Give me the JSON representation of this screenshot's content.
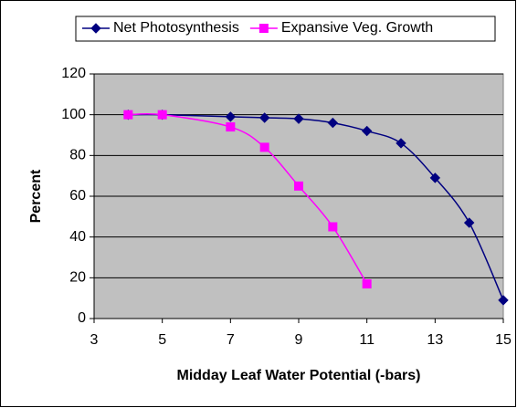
{
  "chart_data": {
    "type": "line",
    "x_label": "Midday Leaf Water Potential (-bars)",
    "y_label": "Percent",
    "series": [
      {
        "name": "Net Photosynthesis",
        "color": "#000080",
        "marker": "diamond",
        "x": [
          4,
          5,
          7,
          8,
          9,
          10,
          11,
          12,
          13,
          14,
          15
        ],
        "values": [
          100,
          100,
          99,
          98.5,
          98,
          96,
          92,
          86,
          69,
          47,
          9
        ]
      },
      {
        "name": "Expansive Veg. Growth",
        "color": "#ff00ff",
        "marker": "square",
        "x": [
          4,
          5,
          7,
          8,
          9,
          10,
          11
        ],
        "values": [
          100,
          100,
          94,
          84,
          65,
          45,
          17
        ]
      }
    ],
    "xlim": [
      3,
      15
    ],
    "xticks": [
      3,
      5,
      7,
      9,
      11,
      13,
      15
    ],
    "ylim": [
      0,
      120
    ],
    "yticks": [
      0,
      20,
      40,
      60,
      80,
      100,
      120
    ],
    "grid": true,
    "legend": "top",
    "plot_background": "#c0c0c0",
    "smooth": true
  }
}
